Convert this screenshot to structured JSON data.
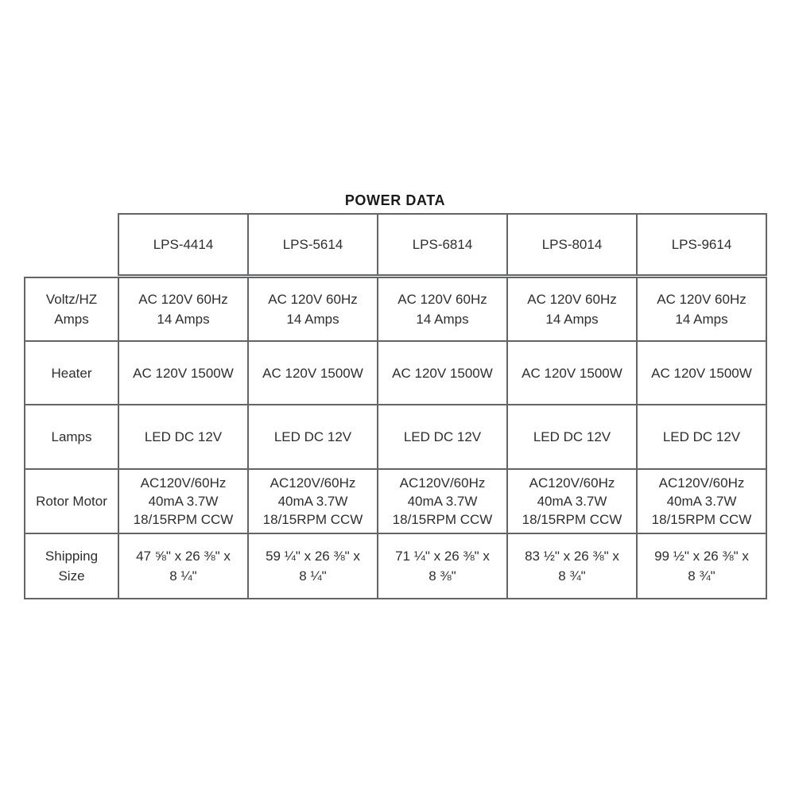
{
  "title": "POWER DATA",
  "power_table": {
    "columns": [
      "LPS-4414",
      "LPS-5614",
      "LPS-6814",
      "LPS-8014",
      "LPS-9614"
    ],
    "rows": [
      {
        "label": "Voltz/HZ\nAmps",
        "cells": [
          "AC 120V 60Hz\n14 Amps",
          "AC 120V 60Hz\n14 Amps",
          "AC 120V 60Hz\n14 Amps",
          "AC 120V 60Hz\n14 Amps",
          "AC 120V 60Hz\n14 Amps"
        ]
      },
      {
        "label": "Heater",
        "cells": [
          "AC 120V 1500W",
          "AC 120V 1500W",
          "AC 120V 1500W",
          "AC 120V 1500W",
          "AC 120V 1500W"
        ]
      },
      {
        "label": "Lamps",
        "cells": [
          "LED DC 12V",
          "LED DC 12V",
          "LED DC 12V",
          "LED DC 12V",
          "LED DC 12V"
        ]
      },
      {
        "label": "Rotor Motor",
        "cells": [
          "AC120V/60Hz\n40mA 3.7W\n18/15RPM CCW",
          "AC120V/60Hz\n40mA 3.7W\n18/15RPM CCW",
          "AC120V/60Hz\n40mA 3.7W\n18/15RPM CCW",
          "AC120V/60Hz\n40mA 3.7W\n18/15RPM CCW",
          "AC120V/60Hz\n40mA 3.7W\n18/15RPM CCW"
        ]
      },
      {
        "label": "Shipping\nSize",
        "cells": [
          "47 ⅝\" x 26 ⅜\" x\n8 ¼\"",
          "59 ¼\" x 26 ⅜\" x\n8 ¼\"",
          "71 ¼\" x 26 ⅜\" x\n8 ⅜\"",
          "83 ½\" x 26 ⅜\" x\n8 ¾\"",
          "99 ½\" x 26 ⅜\" x\n8 ¾\""
        ]
      }
    ]
  },
  "colors": {
    "border": "#636466",
    "text": "#2e2e30",
    "title": "#1a1a1a"
  }
}
